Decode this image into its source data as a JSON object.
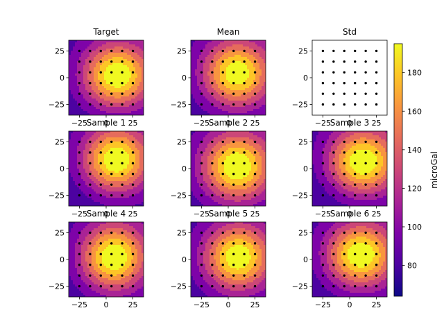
{
  "figure": {
    "colorbar_label": "microGal",
    "colorbar_ticks": [
      80,
      100,
      120,
      140,
      160,
      180
    ],
    "colorbar_range": [
      64,
      195
    ]
  },
  "chart_data": {
    "type": "heatmap",
    "colormap": "plasma",
    "x_ticks": [
      -25,
      0,
      25
    ],
    "y_ticks": [
      25,
      0,
      -25
    ],
    "xlim": [
      -35,
      35
    ],
    "ylim": [
      -35,
      35
    ],
    "station_points": {
      "x": [
        -25,
        -15,
        -5,
        5,
        15,
        25
      ],
      "y": [
        25,
        15,
        5,
        -5,
        -15,
        -25
      ]
    },
    "panels": [
      {
        "title": "Target",
        "show_x_ticks": true,
        "field": {
          "cx": 10,
          "cy": 2,
          "amp": 125,
          "wx": 30,
          "wy": 28,
          "tilt": 0.3
        }
      },
      {
        "title": "Mean",
        "show_x_ticks": true,
        "field": {
          "cx": 8,
          "cy": 4,
          "amp": 122,
          "wx": 30,
          "wy": 29,
          "tilt": 0.2
        }
      },
      {
        "title": "Std",
        "show_x_ticks": true,
        "blank": true
      },
      {
        "title": "Sample 1",
        "show_x_ticks": true,
        "field": {
          "cx": 9,
          "cy": 8,
          "amp": 124,
          "wx": 29,
          "wy": 28,
          "tilt": 0.4
        }
      },
      {
        "title": "Sample 2",
        "show_x_ticks": true,
        "field": {
          "cx": 8,
          "cy": 2,
          "amp": 126,
          "wx": 31,
          "wy": 30,
          "tilt": 0.2
        }
      },
      {
        "title": "Sample 3",
        "show_x_ticks": true,
        "field": {
          "cx": 12,
          "cy": 6,
          "amp": 124,
          "wx": 30,
          "wy": 28,
          "tilt": 0.5
        }
      },
      {
        "title": "Sample 4",
        "show_x_ticks": true,
        "field": {
          "cx": 7,
          "cy": 2,
          "amp": 125,
          "wx": 29,
          "wy": 29,
          "tilt": 0.3
        }
      },
      {
        "title": "Sample 5",
        "show_x_ticks": true,
        "field": {
          "cx": 9,
          "cy": 2,
          "amp": 123,
          "wx": 30,
          "wy": 29,
          "tilt": 0.2
        }
      },
      {
        "title": "Sample 6",
        "show_x_ticks": true,
        "field": {
          "cx": 10,
          "cy": 4,
          "amp": 125,
          "wx": 30,
          "wy": 28,
          "tilt": 0.3
        }
      }
    ]
  }
}
